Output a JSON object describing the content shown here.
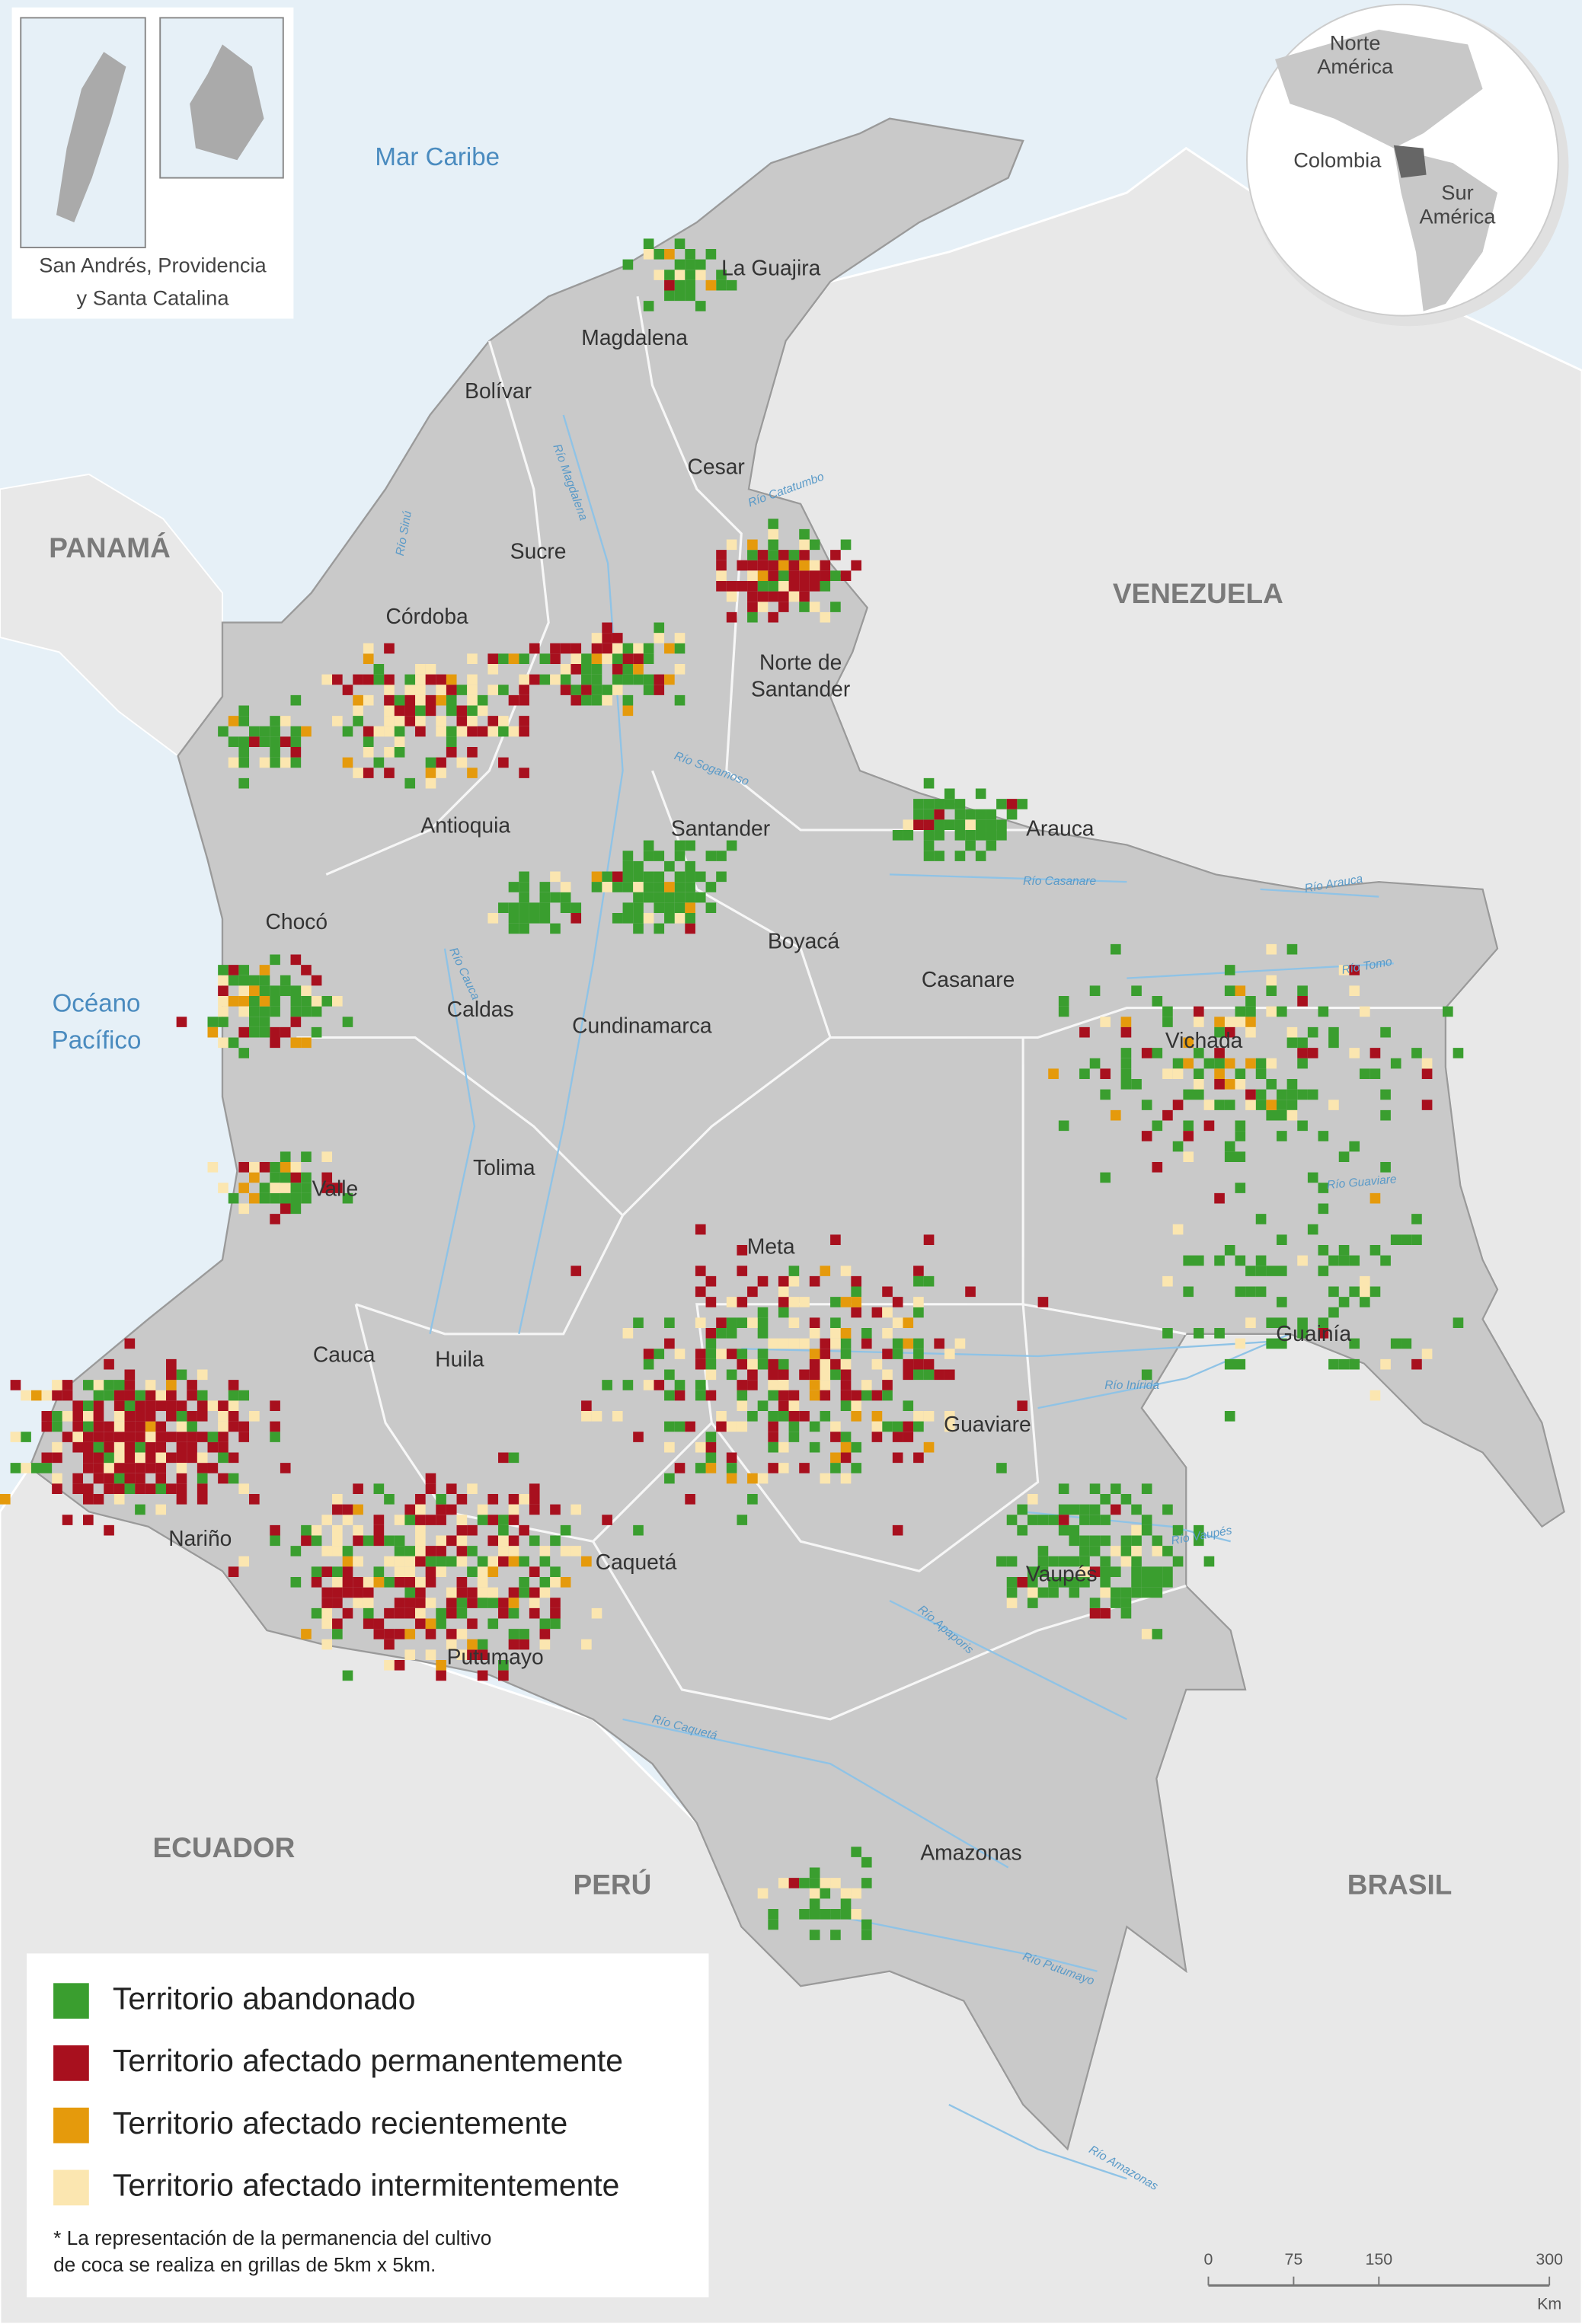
{
  "inset": {
    "lines": [
      "San Andrés, Providencia",
      "y Santa Catalina"
    ]
  },
  "globe": {
    "north": [
      "Norte",
      "América"
    ],
    "center": "Colombia",
    "south": [
      "Sur",
      "América"
    ]
  },
  "water_labels": {
    "caribbean": "Mar Caribe",
    "pacific": [
      "Océano",
      "Pacífico"
    ]
  },
  "countries": [
    "PANAMÁ",
    "VENEZUELA",
    "ECUADOR",
    "PERÚ",
    "BRASIL"
  ],
  "departments": [
    "La Guajira",
    "Magdalena",
    "Bolívar",
    "Cesar",
    "Sucre",
    "Córdoba",
    "Norte de",
    "Santander",
    "Antioquia",
    "Santander",
    "Arauca",
    "Chocó",
    "Boyacá",
    "Casanare",
    "Caldas",
    "Cundinamarca",
    "Vichada",
    "Tolima",
    "Valle",
    "Meta",
    "Cauca",
    "Huila",
    "Guainía",
    "Guaviare",
    "Nariño",
    "Caquetá",
    "Vaupés",
    "Putumayo",
    "Amazonas"
  ],
  "rivers": [
    "Río Magdalena",
    "Río Sinú",
    "Río Catatumbo",
    "Río Sogamoso",
    "Río Casanare",
    "Río Arauca",
    "Río Tomo",
    "Río Guaviare",
    "Río Inírida",
    "Río Vaupés",
    "Río Apaporis",
    "Río Caquetá",
    "Río Putumayo",
    "Río Amazonas",
    "Río Cauca"
  ],
  "legend": {
    "items": [
      {
        "label": "Territorio abandonado",
        "color": "#3a9e2f"
      },
      {
        "label": "Territorio afectado permanentemente",
        "color": "#a8101e"
      },
      {
        "label": "Territorio afectado recientemente",
        "color": "#e59a0c"
      },
      {
        "label": "Territorio afectado intermitentemente",
        "color": "#fbe6b0"
      }
    ],
    "note": [
      "* La representación de la permanencia del cultivo",
      "de coca se realiza en grillas de 5km x 5km."
    ]
  },
  "scale_bar": {
    "ticks": [
      0,
      75,
      150,
      300
    ],
    "unit": "Km"
  }
}
